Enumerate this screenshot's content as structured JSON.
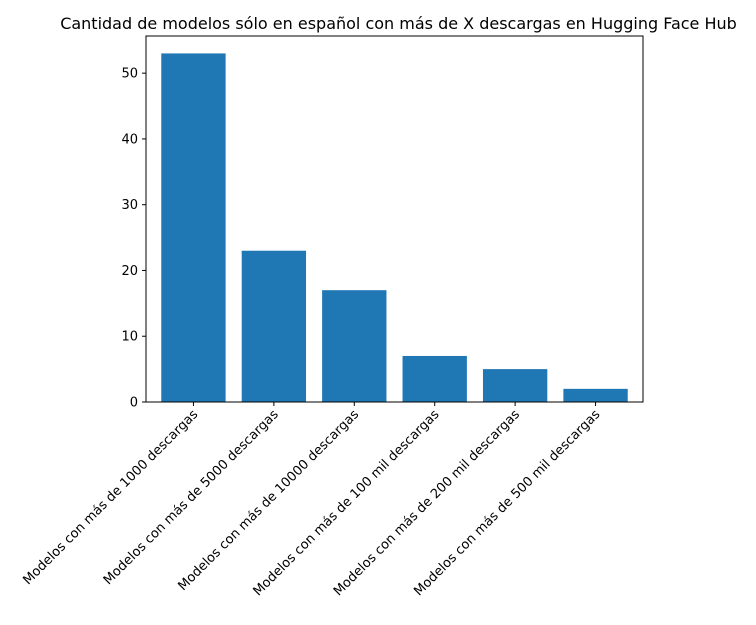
{
  "chart_data": {
    "type": "bar",
    "title": "Cantidad de modelos sólo en español con más de X descargas en Hugging Face Hub",
    "xlabel": "",
    "ylabel": "",
    "categories": [
      "Modelos con más de 1000 descargas",
      "Modelos con más de 5000 descargas",
      "Modelos con más de 10000 descargas",
      "Modelos con más de 100 mil descargas",
      "Modelos con más de 200 mil descargas",
      "Modelos con más de 500 mil descargas"
    ],
    "values": [
      53,
      23,
      17,
      7,
      5,
      2
    ],
    "ylim": [
      0,
      55.65
    ],
    "yticks": [
      0,
      10,
      20,
      30,
      40,
      50
    ],
    "bar_color": "#1f77b4",
    "grid": false,
    "legend": "none"
  }
}
